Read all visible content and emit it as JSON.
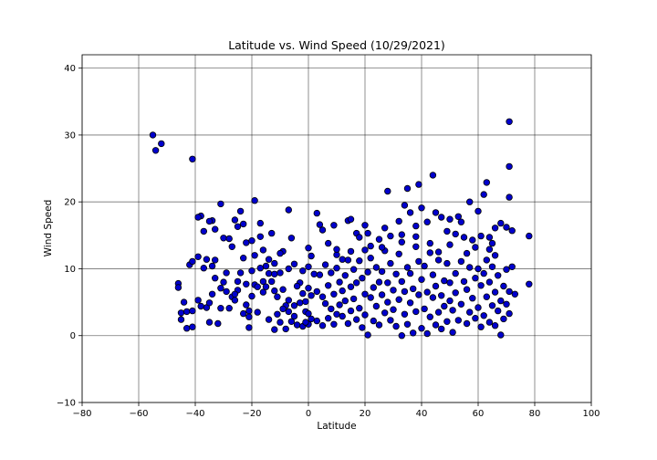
{
  "chart_data": {
    "type": "scatter",
    "title": "Latitude vs. Wind Speed (10/29/2021)",
    "xlabel": "Latitude",
    "ylabel": "Wind Speed",
    "xlim": [
      -80,
      100
    ],
    "ylim": [
      -10,
      42
    ],
    "xticks": [
      "−80",
      "−60",
      "−40",
      "−20",
      "0",
      "20",
      "40",
      "60",
      "80",
      "100"
    ],
    "xtick_values": [
      -80,
      -60,
      -40,
      -20,
      0,
      20,
      40,
      60,
      80,
      100
    ],
    "yticks": [
      "−10",
      "0",
      "10",
      "20",
      "30",
      "40"
    ],
    "ytick_values": [
      -10,
      0,
      10,
      20,
      30,
      40
    ],
    "grid": true,
    "marker_color": "#0000cd",
    "marker_edge_color": "#000000",
    "points": [
      [
        -55,
        30.0
      ],
      [
        -54,
        27.7
      ],
      [
        -52,
        28.7
      ],
      [
        -41,
        26.4
      ],
      [
        -38,
        17.9
      ],
      [
        -34,
        17.2
      ],
      [
        -31,
        19.7
      ],
      [
        -26,
        17.3
      ],
      [
        -24,
        18.6
      ],
      [
        -19,
        20.2
      ],
      [
        -17,
        16.8
      ],
      [
        -13,
        15.3
      ],
      [
        -7,
        18.8
      ],
      [
        -46,
        7.8
      ],
      [
        -46,
        7.2
      ],
      [
        -45,
        3.4
      ],
      [
        -45,
        2.4
      ],
      [
        -44,
        5.0
      ],
      [
        -43,
        3.6
      ],
      [
        -43,
        1.1
      ],
      [
        -42,
        10.6
      ],
      [
        -41,
        11.1
      ],
      [
        -41,
        3.7
      ],
      [
        -41,
        1.3
      ],
      [
        -39,
        5.3
      ],
      [
        -38,
        4.4
      ],
      [
        -36,
        4.2
      ],
      [
        -35,
        4.9
      ],
      [
        -35,
        2.0
      ],
      [
        -34,
        6.2
      ],
      [
        -34,
        10.4
      ],
      [
        -33,
        11.3
      ],
      [
        -32,
        1.8
      ],
      [
        -31,
        4.1
      ],
      [
        -30,
        8.0
      ],
      [
        -29,
        9.4
      ],
      [
        -28,
        4.1
      ],
      [
        -27,
        5.8
      ],
      [
        -26,
        5.3
      ],
      [
        -25,
        6.8
      ],
      [
        -24,
        9.4
      ],
      [
        -23,
        11.6
      ],
      [
        -22,
        7.7
      ],
      [
        -22,
        4.6
      ],
      [
        -21,
        3.7
      ],
      [
        -21,
        1.2
      ],
      [
        -20,
        5.9
      ],
      [
        -20,
        9.7
      ],
      [
        -19,
        12.0
      ],
      [
        -19,
        7.6
      ],
      [
        -18,
        7.3
      ],
      [
        -17,
        10.1
      ],
      [
        -16,
        8.1
      ],
      [
        -15,
        10.4
      ],
      [
        -15,
        7.3
      ],
      [
        -14,
        9.3
      ],
      [
        -13,
        8.1
      ],
      [
        -12,
        9.2
      ],
      [
        -12,
        0.9
      ],
      [
        -11,
        5.8
      ],
      [
        -11,
        3.2
      ],
      [
        -10,
        2.0
      ],
      [
        -10,
        9.4
      ],
      [
        -9,
        12.6
      ],
      [
        -9,
        6.9
      ],
      [
        -8,
        4.5
      ],
      [
        -8,
        1.0
      ],
      [
        -7,
        10.0
      ],
      [
        -7,
        3.6
      ],
      [
        -6,
        2.1
      ],
      [
        -6,
        14.6
      ],
      [
        -5,
        10.7
      ],
      [
        -5,
        4.5
      ],
      [
        -4,
        1.6
      ],
      [
        -3,
        4.9
      ],
      [
        -3,
        7.9
      ],
      [
        -2,
        9.7
      ],
      [
        -2,
        1.4
      ],
      [
        -1,
        3.6
      ],
      [
        -1,
        5.1
      ],
      [
        0,
        13.1
      ],
      [
        0,
        10.3
      ],
      [
        0,
        7.1
      ],
      [
        0,
        3.3
      ],
      [
        0,
        1.7
      ],
      [
        1,
        11.9
      ],
      [
        1,
        6.0
      ],
      [
        1,
        2.5
      ],
      [
        -39,
        17.7
      ],
      [
        -37,
        15.6
      ],
      [
        -35,
        17.1
      ],
      [
        -33,
        15.9
      ],
      [
        -30,
        14.6
      ],
      [
        -28,
        14.5
      ],
      [
        -27,
        13.3
      ],
      [
        -25,
        16.3
      ],
      [
        -23,
        16.7
      ],
      [
        -22,
        13.9
      ],
      [
        -20,
        14.2
      ],
      [
        -17,
        14.8
      ],
      [
        -16,
        12.8
      ],
      [
        -14,
        11.4
      ],
      [
        -12,
        10.8
      ],
      [
        -10,
        12.3
      ],
      [
        -39,
        11.8
      ],
      [
        -37,
        10.1
      ],
      [
        -36,
        11.4
      ],
      [
        -33,
        8.6
      ],
      [
        -31,
        7.1
      ],
      [
        -29,
        6.6
      ],
      [
        -26,
        6.2
      ],
      [
        -25,
        8.1
      ],
      [
        -23,
        3.3
      ],
      [
        -21,
        2.8
      ],
      [
        -18,
        3.5
      ],
      [
        -16,
        6.5
      ],
      [
        -14,
        2.4
      ],
      [
        -12,
        6.7
      ],
      [
        -9,
        4.0
      ],
      [
        -7,
        5.3
      ],
      [
        -5,
        2.9
      ],
      [
        -4,
        7.4
      ],
      [
        -2,
        6.3
      ],
      [
        -1,
        2.0
      ],
      [
        3,
        18.3
      ],
      [
        4,
        16.6
      ],
      [
        5,
        15.8
      ],
      [
        7,
        13.8
      ],
      [
        9,
        16.5
      ],
      [
        10,
        12.1
      ],
      [
        12,
        11.4
      ],
      [
        14,
        17.2
      ],
      [
        15,
        17.4
      ],
      [
        17,
        15.3
      ],
      [
        18,
        14.7
      ],
      [
        20,
        16.5
      ],
      [
        21,
        15.3
      ],
      [
        22,
        13.4
      ],
      [
        25,
        14.4
      ],
      [
        27,
        16.1
      ],
      [
        28,
        21.6
      ],
      [
        29,
        14.9
      ],
      [
        32,
        17.1
      ],
      [
        33,
        15.1
      ],
      [
        34,
        19.5
      ],
      [
        35,
        22.0
      ],
      [
        36,
        18.4
      ],
      [
        38,
        16.4
      ],
      [
        39,
        22.6
      ],
      [
        40,
        19.1
      ],
      [
        42,
        17.0
      ],
      [
        44,
        24.0
      ],
      [
        45,
        18.4
      ],
      [
        47,
        17.7
      ],
      [
        49,
        15.6
      ],
      [
        50,
        17.4
      ],
      [
        52,
        15.2
      ],
      [
        53,
        17.8
      ],
      [
        54,
        17.0
      ],
      [
        55,
        14.7
      ],
      [
        57,
        20.0
      ],
      [
        58,
        14.3
      ],
      [
        60,
        18.6
      ],
      [
        61,
        14.9
      ],
      [
        62,
        21.1
      ],
      [
        63,
        22.9
      ],
      [
        64,
        14.7
      ],
      [
        65,
        13.8
      ],
      [
        66,
        16.1
      ],
      [
        68,
        16.8
      ],
      [
        70,
        16.2
      ],
      [
        71,
        32.0
      ],
      [
        71,
        25.3
      ],
      [
        71,
        20.7
      ],
      [
        72,
        15.7
      ],
      [
        78,
        14.9
      ],
      [
        78,
        7.7
      ],
      [
        2,
        9.2
      ],
      [
        3,
        6.6
      ],
      [
        3,
        2.2
      ],
      [
        4,
        9.1
      ],
      [
        5,
        5.8
      ],
      [
        5,
        1.5
      ],
      [
        6,
        10.6
      ],
      [
        6,
        4.8
      ],
      [
        7,
        7.5
      ],
      [
        7,
        2.6
      ],
      [
        8,
        9.4
      ],
      [
        8,
        4.0
      ],
      [
        9,
        6.2
      ],
      [
        9,
        1.7
      ],
      [
        10,
        10.1
      ],
      [
        10,
        3.2
      ],
      [
        11,
        8.0
      ],
      [
        11,
        4.6
      ],
      [
        12,
        2.9
      ],
      [
        12,
        6.7
      ],
      [
        13,
        9.0
      ],
      [
        13,
        5.2
      ],
      [
        14,
        1.8
      ],
      [
        14,
        11.3
      ],
      [
        15,
        7.3
      ],
      [
        15,
        3.7
      ],
      [
        16,
        9.9
      ],
      [
        16,
        5.5
      ],
      [
        17,
        2.4
      ],
      [
        17,
        7.9
      ],
      [
        18,
        11.2
      ],
      [
        18,
        4.1
      ],
      [
        19,
        8.6
      ],
      [
        19,
        1.2
      ],
      [
        20,
        6.2
      ],
      [
        20,
        3.1
      ],
      [
        21,
        9.5
      ],
      [
        21,
        0.1
      ],
      [
        22,
        5.7
      ],
      [
        22,
        11.6
      ],
      [
        23,
        2.2
      ],
      [
        23,
        7.2
      ],
      [
        24,
        10.2
      ],
      [
        24,
        4.4
      ],
      [
        25,
        8.0
      ],
      [
        25,
        1.6
      ],
      [
        26,
        6.1
      ],
      [
        26,
        9.6
      ],
      [
        27,
        3.4
      ],
      [
        27,
        12.7
      ],
      [
        28,
        7.9
      ],
      [
        28,
        5.0
      ],
      [
        29,
        2.3
      ],
      [
        29,
        10.8
      ],
      [
        30,
        6.8
      ],
      [
        30,
        3.9
      ],
      [
        31,
        9.2
      ],
      [
        31,
        1.4
      ],
      [
        32,
        5.4
      ],
      [
        32,
        12.2
      ],
      [
        33,
        8.1
      ],
      [
        33,
        0.0
      ],
      [
        34,
        3.2
      ],
      [
        34,
        6.6
      ],
      [
        35,
        10.2
      ],
      [
        35,
        1.7
      ],
      [
        36,
        4.9
      ],
      [
        36,
        9.3
      ],
      [
        37,
        0.4
      ],
      [
        37,
        7.0
      ],
      [
        38,
        13.3
      ],
      [
        38,
        3.6
      ],
      [
        39,
        6.1
      ],
      [
        39,
        11.1
      ],
      [
        40,
        1.1
      ],
      [
        40,
        8.4
      ],
      [
        41,
        4.0
      ],
      [
        41,
        10.4
      ],
      [
        42,
        0.3
      ],
      [
        42,
        6.5
      ],
      [
        43,
        2.8
      ],
      [
        43,
        12.4
      ],
      [
        44,
        5.7
      ],
      [
        44,
        9.1
      ],
      [
        45,
        1.6
      ],
      [
        45,
        7.4
      ],
      [
        46,
        3.5
      ],
      [
        46,
        11.3
      ],
      [
        47,
        6.0
      ],
      [
        47,
        1.0
      ],
      [
        48,
        8.2
      ],
      [
        48,
        4.4
      ],
      [
        49,
        2.1
      ],
      [
        49,
        10.8
      ],
      [
        50,
        5.2
      ],
      [
        50,
        7.9
      ],
      [
        51,
        0.5
      ],
      [
        51,
        3.8
      ],
      [
        52,
        9.3
      ],
      [
        52,
        6.4
      ],
      [
        53,
        2.3
      ],
      [
        54,
        11.1
      ],
      [
        54,
        4.7
      ],
      [
        55,
        8.1
      ],
      [
        56,
        1.8
      ],
      [
        56,
        6.9
      ],
      [
        57,
        3.5
      ],
      [
        57,
        10.2
      ],
      [
        58,
        5.6
      ],
      [
        59,
        8.6
      ],
      [
        59,
        2.6
      ],
      [
        60,
        10.0
      ],
      [
        60,
        4.2
      ],
      [
        61,
        1.3
      ],
      [
        61,
        7.5
      ],
      [
        62,
        9.3
      ],
      [
        62,
        3.0
      ],
      [
        63,
        5.8
      ],
      [
        63,
        11.3
      ],
      [
        64,
        2.0
      ],
      [
        64,
        8.0
      ],
      [
        65,
        4.5
      ],
      [
        65,
        10.3
      ],
      [
        66,
        6.5
      ],
      [
        66,
        1.5
      ],
      [
        67,
        3.7
      ],
      [
        67,
        9.0
      ],
      [
        68,
        5.2
      ],
      [
        68,
        0.1
      ],
      [
        69,
        7.4
      ],
      [
        69,
        2.5
      ],
      [
        70,
        4.7
      ],
      [
        70,
        9.9
      ],
      [
        71,
        6.6
      ],
      [
        71,
        3.3
      ],
      [
        72,
        10.3
      ],
      [
        73,
        6.2
      ],
      [
        64,
        12.9
      ],
      [
        66,
        12.0
      ],
      [
        59,
        13.2
      ],
      [
        56,
        12.3
      ],
      [
        50,
        13.6
      ],
      [
        46,
        12.5
      ],
      [
        43,
        13.8
      ],
      [
        38,
        14.8
      ],
      [
        33,
        14.0
      ],
      [
        26,
        13.2
      ],
      [
        20,
        12.8
      ],
      [
        15,
        12.6
      ],
      [
        10,
        12.9
      ]
    ]
  }
}
